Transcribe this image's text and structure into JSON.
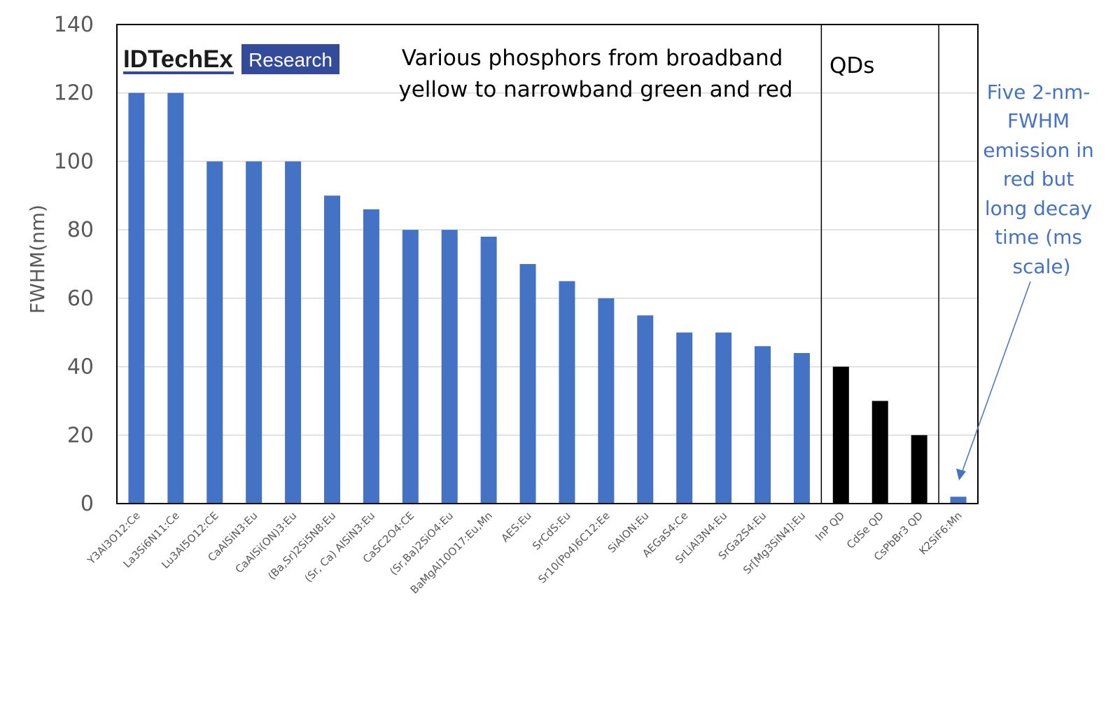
{
  "logo": {
    "name": "IDTechEx",
    "tag": "Research",
    "color": "#344a9a"
  },
  "chart_data": {
    "type": "bar",
    "ylabel": "FWHM(nm)",
    "xlabel": "",
    "ylim": [
      0,
      140
    ],
    "yticks": [
      0,
      20,
      40,
      60,
      80,
      100,
      120,
      140
    ],
    "grid": "horizontal",
    "categories": [
      "Y3Al3O12:Ce",
      "La3Si6N11:Ce",
      "Lu3Al5O12:CE",
      "CaAlSiN3:Eu",
      "CaAlSi(ON)3:Eu",
      "(Ba,Sr)2Si5N8:Eu",
      "(Sr, Ca) AlSiN3:Eu",
      "CaSC2O4:CE",
      "(Sr,Ba)2SiO4:Eu",
      "BaMgAl10O17:Eu,Mn",
      "AES:Eu",
      "SrCdS:Eu",
      "Sr10(Po4)6C12:Ee",
      "SiAlON:Eu",
      "AEGaS4:Ce",
      "SrLiAl3N4:Eu",
      "SrGa2S4:Eu",
      "Sr[Mg3SiN4]:Eu",
      "InP QD",
      "CdSe QD",
      "CsPbBr3 QD",
      "K2SiF6:Mn"
    ],
    "values": [
      120,
      120,
      100,
      100,
      100,
      90,
      86,
      80,
      80,
      78,
      70,
      65,
      60,
      55,
      50,
      50,
      46,
      44,
      40,
      30,
      20,
      2
    ],
    "groups": [
      "phosphor",
      "phosphor",
      "phosphor",
      "phosphor",
      "phosphor",
      "phosphor",
      "phosphor",
      "phosphor",
      "phosphor",
      "phosphor",
      "phosphor",
      "phosphor",
      "phosphor",
      "phosphor",
      "phosphor",
      "phosphor",
      "phosphor",
      "phosphor",
      "qd",
      "qd",
      "qd",
      "phosphor"
    ],
    "colors": {
      "phosphor": "#4472c4",
      "qd": "#000000"
    },
    "annotations": {
      "phosphors": "Various phosphors from broadband yellow to narrowband green and red",
      "qds": "QDs",
      "note": "Five 2-nm-FWHM emission in red but long decay time (ms scale)"
    }
  }
}
